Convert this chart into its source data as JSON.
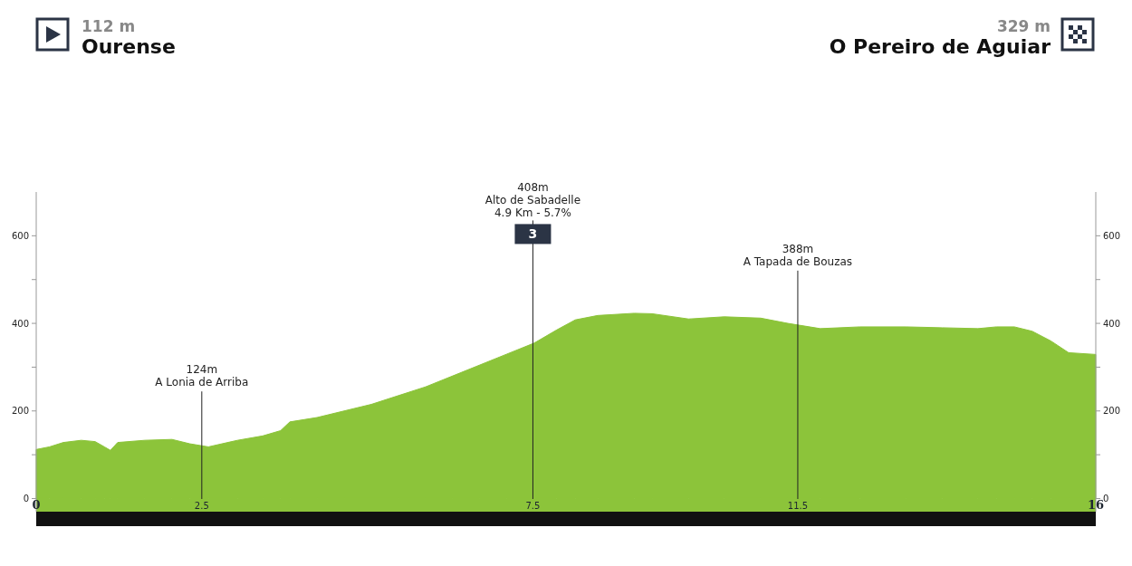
{
  "chart_data": {
    "type": "area",
    "title": "Ourense",
    "subtitle": "O Pereiro de Aguiar",
    "x": [
      0,
      0.2,
      0.41,
      0.68,
      0.89,
      1.03,
      1.12,
      1.23,
      1.64,
      2.05,
      2.32,
      2.6,
      3.04,
      3.42,
      3.69,
      3.83,
      4.24,
      4.65,
      5.06,
      5.47,
      5.88,
      6.29,
      6.7,
      7.11,
      7.52,
      7.86,
      8.14,
      8.48,
      9.03,
      9.3,
      9.85,
      10.39,
      10.94,
      11.35,
      11.84,
      12.44,
      13.13,
      13.68,
      14.22,
      14.5,
      14.77,
      15.04,
      15.32,
      15.59,
      16
    ],
    "series": [
      {
        "color": "#8cc43a",
        "values": [
          112,
          118,
          128,
          133,
          130,
          118,
          110,
          128,
          133,
          135,
          125,
          118,
          133,
          143,
          155,
          175,
          185,
          200,
          215,
          235,
          255,
          280,
          305,
          330,
          355,
          385,
          408,
          418,
          423,
          422,
          410,
          415,
          412,
          400,
          388,
          392,
          392,
          390,
          388,
          392,
          392,
          382,
          360,
          333,
          329
        ]
      }
    ],
    "xlim": [
      0,
      16
    ],
    "xticks": [
      0,
      2.5,
      7.5,
      11.5,
      16
    ],
    "ylim": [
      -30,
      700
    ],
    "yticks": [
      0,
      {
        "value": 100,
        "label": null
      },
      200,
      {
        "value": 300,
        "label": null
      },
      400,
      {
        "value": 500,
        "label": null
      },
      600
    ],
    "y2lim": [
      -30,
      700
    ],
    "y2ticks": [
      0,
      {
        "value": 100,
        "label": null
      },
      200,
      {
        "value": 300,
        "label": null
      },
      400,
      {
        "value": 500,
        "label": null
      },
      600
    ],
    "grid": false,
    "ref_lines": [
      {
        "axis": "x",
        "value": 2.5,
        "label": "124m\nA Lonia de Arriba"
      },
      {
        "axis": "x",
        "value": 7.5,
        "label": "408m\nAlto de Sabadelle\n4.9 Km - 5.7%"
      },
      {
        "axis": "x",
        "value": 11.5,
        "label": "388m\nA Tapada de Bouzas"
      }
    ],
    "annotations": [
      "112 m",
      "329 m",
      "3"
    ]
  }
}
